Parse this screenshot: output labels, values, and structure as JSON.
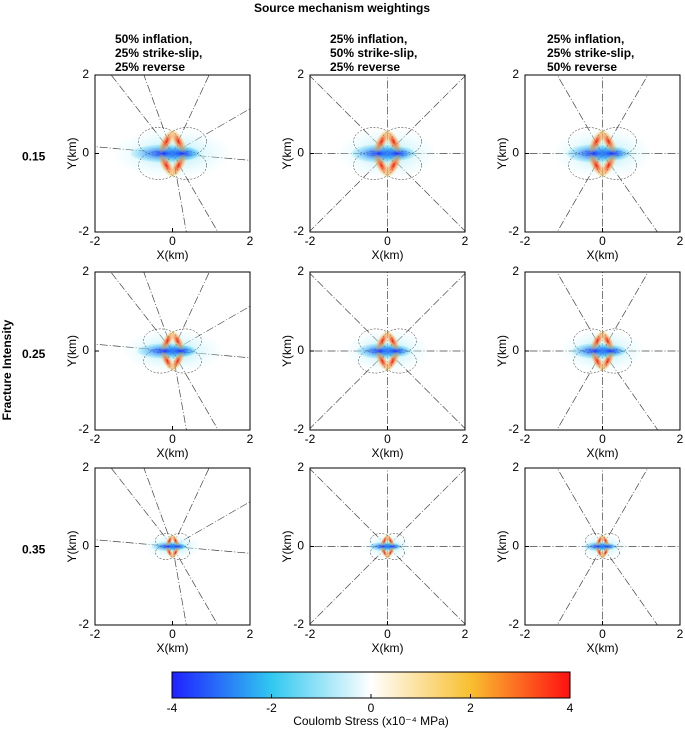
{
  "title": "Source mechanism weightings",
  "column_labels": [
    [
      "50% inflation,",
      "25% strike-slip,",
      "25% reverse"
    ],
    [
      "25% inflation,",
      "50% strike-slip,",
      "25% reverse"
    ],
    [
      "25% inflation,",
      "25% strike-slip,",
      "50% reverse"
    ]
  ],
  "row_title": "Fracture Intensity",
  "row_labels": [
    "0.15",
    "0.25",
    "0.35"
  ],
  "chart_data": [
    {
      "type": "contour",
      "xlabel": "X(km)",
      "ylabel": "Y(km)",
      "xlim": [
        -2,
        2
      ],
      "ylim": [
        -2,
        2
      ],
      "xticks": [
        -2,
        0,
        2
      ],
      "yticks": [
        -2,
        0,
        2
      ]
    },
    {
      "type": "contour",
      "xlabel": "X(km)",
      "ylabel": "Y(km)",
      "xlim": [
        -2,
        2
      ],
      "ylim": [
        -2,
        2
      ],
      "xticks": [
        -2,
        0,
        2
      ],
      "yticks": [
        -2,
        0,
        2
      ]
    },
    {
      "type": "contour",
      "xlabel": "X(km)",
      "ylabel": "Y(km)",
      "xlim": [
        -2,
        2
      ],
      "ylim": [
        -2,
        2
      ],
      "xticks": [
        -2,
        0,
        2
      ],
      "yticks": [
        -2,
        0,
        2
      ]
    },
    {
      "type": "contour",
      "xlabel": "X(km)",
      "ylabel": "Y(km)",
      "xlim": [
        -2,
        2
      ],
      "ylim": [
        -2,
        2
      ],
      "xticks": [
        -2,
        0,
        2
      ],
      "yticks": [
        -2,
        0,
        2
      ]
    },
    {
      "type": "contour",
      "xlabel": "X(km)",
      "ylabel": "Y(km)",
      "xlim": [
        -2,
        2
      ],
      "ylim": [
        -2,
        2
      ],
      "xticks": [
        -2,
        0,
        2
      ],
      "yticks": [
        -2,
        0,
        2
      ]
    },
    {
      "type": "contour",
      "xlabel": "X(km)",
      "ylabel": "Y(km)",
      "xlim": [
        -2,
        2
      ],
      "ylim": [
        -2,
        2
      ],
      "xticks": [
        -2,
        0,
        2
      ],
      "yticks": [
        -2,
        0,
        2
      ]
    },
    {
      "type": "contour",
      "xlabel": "X(km)",
      "ylabel": "Y(km)",
      "xlim": [
        -2,
        2
      ],
      "ylim": [
        -2,
        2
      ],
      "xticks": [
        -2,
        0,
        2
      ],
      "yticks": [
        -2,
        0,
        2
      ]
    },
    {
      "type": "contour",
      "xlabel": "X(km)",
      "ylabel": "Y(km)",
      "xlim": [
        -2,
        2
      ],
      "ylim": [
        -2,
        2
      ],
      "xticks": [
        -2,
        0,
        2
      ],
      "yticks": [
        -2,
        0,
        2
      ]
    },
    {
      "type": "contour",
      "xlabel": "X(km)",
      "ylabel": "Y(km)",
      "xlim": [
        -2,
        2
      ],
      "ylim": [
        -2,
        2
      ],
      "xticks": [
        -2,
        0,
        2
      ],
      "yticks": [
        -2,
        0,
        2
      ]
    }
  ],
  "colorbar": {
    "label": "Coulomb Stress (x10⁻⁴ MPa)",
    "lim": [
      -4,
      4
    ],
    "ticks": [
      -4,
      -2,
      0,
      2,
      4
    ],
    "colors": [
      "#2020ff",
      "#30c8f0",
      "#ffffff",
      "#f8c030",
      "#ff1010"
    ]
  }
}
